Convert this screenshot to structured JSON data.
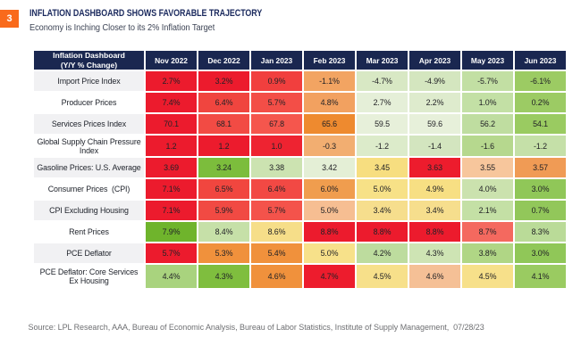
{
  "page": {
    "badge": "3",
    "title": "INFLATION DASHBOARD SHOWS FAVORABLE TRAJECTORY",
    "subtitle": "Economy is Inching Closer to its 2% Inflation Target",
    "source": "Source: LPL Research, AAA, Bureau of Economic Analysis, Bureau of Labor Statistics, Institute of Supply Management,  07/28/23"
  },
  "colors": {
    "badge_bg": "#f96a1b",
    "title_text": "#1b2a5e",
    "subtitle_text": "#3d4455",
    "source_text": "#6e6f72",
    "header_bg": "#1a2750",
    "header_text": "#ffffff",
    "label_bg_odd": "#f1f1f3",
    "label_bg_even": "#ffffff",
    "label_text": "#21252d",
    "value_text": "#222226",
    "page_bg": "#ffffff"
  },
  "chart_data": {
    "type": "heatmap",
    "title": "Inflation Dashboard\n(Y/Y % Change)",
    "columns": [
      "Nov 2022",
      "Dec 2022",
      "Jan 2023",
      "Feb 2023",
      "Mar 2023",
      "Apr 2023",
      "May 2023",
      "Jun 2023"
    ],
    "rows": [
      {
        "label": "Import Price Index",
        "values": [
          2.7,
          3.2,
          0.9,
          -1.1,
          -4.7,
          -4.9,
          -5.7,
          -6.1
        ],
        "display": [
          "2.7%",
          "3.2%",
          "0.9%",
          "-1.1%",
          "-4.7%",
          "-4.9%",
          "-5.7%",
          "-6.1%"
        ],
        "cell_colors": [
          "#ec1b2d",
          "#ec1b2d",
          "#f13f3e",
          "#f2a462",
          "#d8e8c4",
          "#d4e6bf",
          "#c2dfa3",
          "#9ccb63"
        ]
      },
      {
        "label": "Producer Prices",
        "values": [
          7.4,
          6.4,
          5.7,
          4.8,
          2.7,
          2.2,
          1.0,
          0.2
        ],
        "display": [
          "7.4%",
          "6.4%",
          "5.7%",
          "4.8%",
          "2.7%",
          "2.2%",
          "1.0%",
          "0.2%"
        ],
        "cell_colors": [
          "#ec1b2d",
          "#f0453f",
          "#f34e47",
          "#f2a160",
          "#e5efd8",
          "#deebcd",
          "#c3e0a5",
          "#9ccb64"
        ]
      },
      {
        "label": "Services Prices Index",
        "values": [
          70.1,
          68.1,
          67.8,
          65.6,
          59.5,
          59.6,
          56.2,
          54.1
        ],
        "display": [
          "70.1",
          "68.1",
          "67.8",
          "65.6",
          "59.5",
          "59.6",
          "56.2",
          "54.1"
        ],
        "cell_colors": [
          "#ec1b2d",
          "#f24b44",
          "#f5564d",
          "#ee8a2f",
          "#e7f0da",
          "#e7f0da",
          "#bfdda0",
          "#9acb61"
        ]
      },
      {
        "label": "Global Supply Chain Pressure\nIndex",
        "values": [
          1.2,
          1.2,
          1.0,
          -0.3,
          -1.2,
          -1.4,
          -1.6,
          -1.2
        ],
        "display": [
          "1.2",
          "1.2",
          "1.0",
          "-0.3",
          "-1.2",
          "-1.4",
          "-1.6",
          "-1.2"
        ],
        "cell_colors": [
          "#ec1b2d",
          "#ec1b2d",
          "#ee2331",
          "#f2ae71",
          "#dcebca",
          "#d3e5bf",
          "#b6d88e",
          "#c5e0a8"
        ]
      },
      {
        "label": "Gasoline Prices: U.S. Average",
        "values": [
          3.69,
          3.24,
          3.38,
          3.42,
          3.45,
          3.63,
          3.55,
          3.57
        ],
        "display": [
          "3.69",
          "3.24",
          "3.38",
          "3.42",
          "3.45",
          "3.63",
          "3.55",
          "3.57"
        ],
        "cell_colors": [
          "#ec1b2d",
          "#7cbd3c",
          "#cce3b1",
          "#e4efd6",
          "#f7de80",
          "#ed1c2d",
          "#f7c69c",
          "#f09b55"
        ]
      },
      {
        "label": "Consumer Prices  (CPI)",
        "values": [
          7.1,
          6.5,
          6.4,
          6.0,
          5.0,
          4.9,
          4.0,
          3.0
        ],
        "display": [
          "7.1%",
          "6.5%",
          "6.4%",
          "6.0%",
          "5.0%",
          "4.9%",
          "4.0%",
          "3.0%"
        ],
        "cell_colors": [
          "#ec1b2d",
          "#f1463f",
          "#f24944",
          "#f09d4e",
          "#f7e187",
          "#f7df83",
          "#cbe2ae",
          "#90c758"
        ]
      },
      {
        "label": "CPI Excluding Housing",
        "values": [
          7.1,
          5.9,
          5.7,
          5.0,
          3.4,
          3.4,
          2.1,
          0.7
        ],
        "display": [
          "7.1%",
          "5.9%",
          "5.7%",
          "5.0%",
          "3.4%",
          "3.4%",
          "2.1%",
          "0.7%"
        ],
        "cell_colors": [
          "#ec1b2d",
          "#f14a43",
          "#f4534b",
          "#f6be92",
          "#f6de8d",
          "#f6de8d",
          "#c4e0a5",
          "#92c75a"
        ]
      },
      {
        "label": "Rent Prices",
        "values": [
          7.9,
          8.4,
          8.6,
          8.8,
          8.8,
          8.8,
          8.7,
          8.3
        ],
        "display": [
          "7.9%",
          "8.4%",
          "8.6%",
          "8.8%",
          "8.8%",
          "8.8%",
          "8.7%",
          "8.3%"
        ],
        "cell_colors": [
          "#6fb42c",
          "#c6e0a8",
          "#f6de89",
          "#ec1b2d",
          "#ec1b2d",
          "#ec1b2d",
          "#f4695f",
          "#badb98"
        ]
      },
      {
        "label": "PCE Deflator",
        "values": [
          5.7,
          5.3,
          5.4,
          5.0,
          4.2,
          4.3,
          3.8,
          3.0
        ],
        "display": [
          "5.7%",
          "5.3%",
          "5.4%",
          "5.0%",
          "4.2%",
          "4.3%",
          "3.8%",
          "3.0%"
        ],
        "cell_colors": [
          "#ec1b2d",
          "#f0913c",
          "#f0913c",
          "#f7e18a",
          "#bddc9e",
          "#cee4b4",
          "#b0d685",
          "#90c758"
        ]
      },
      {
        "label": "PCE Deflator: Core Services\nEx Housing",
        "values": [
          4.4,
          4.3,
          4.6,
          4.7,
          4.5,
          4.6,
          4.5,
          4.1
        ],
        "display": [
          "4.4%",
          "4.3%",
          "4.6%",
          "4.7%",
          "4.5%",
          "4.6%",
          "4.5%",
          "4.1%"
        ],
        "cell_colors": [
          "#a9d37e",
          "#7fbe3e",
          "#f0913c",
          "#ed1c2d",
          "#f7e08a",
          "#f5c096",
          "#f7e08a",
          "#9acb61"
        ]
      }
    ]
  }
}
